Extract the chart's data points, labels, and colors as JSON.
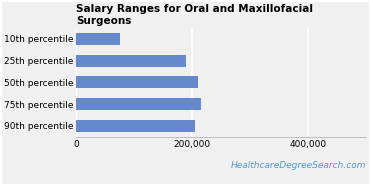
{
  "title": "Salary Ranges for Oral and Maxillofacial\nSurgeons",
  "categories": [
    "10th percentile",
    "25th percentile",
    "50th percentile",
    "75th percentile",
    "90th percentile"
  ],
  "values": [
    75000,
    190000,
    210000,
    215000,
    205000
  ],
  "bar_color": "#6688cc",
  "xlim": [
    0,
    500000
  ],
  "xticks": [
    0,
    200000,
    400000
  ],
  "xtick_labels": [
    "0",
    "200,000",
    "400,000"
  ],
  "watermark": "HealthcareDegreeSearch.com",
  "watermark_color": "#5599cc",
  "background_color": "#f0f0f0",
  "plot_bg_color": "#f0f0f0",
  "border_color": "#cccccc",
  "title_fontsize": 7.5,
  "tick_fontsize": 6.5,
  "watermark_fontsize": 6.5,
  "grid_color": "#ffffff"
}
